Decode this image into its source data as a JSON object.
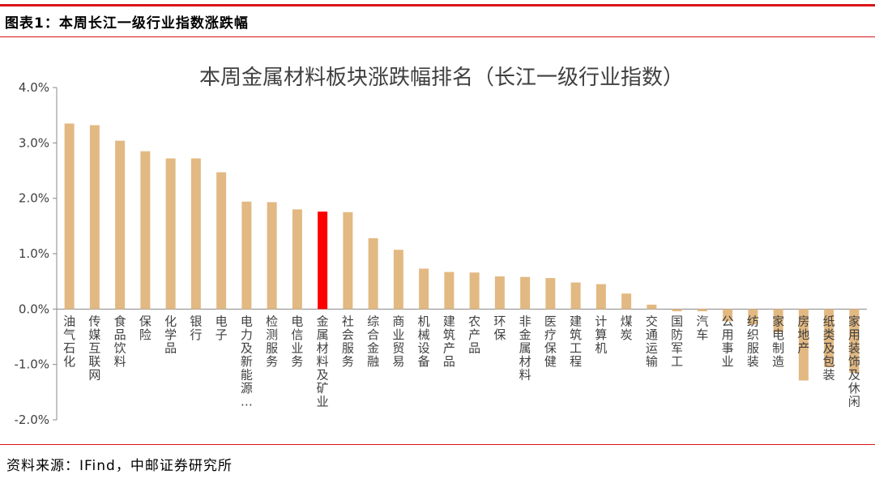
{
  "header": {
    "title": "图表1：本周长江一级行业指数涨跌幅"
  },
  "footer": {
    "source": "资料来源：IFind，中邮证券研究所"
  },
  "colors": {
    "bar": "#e2b982",
    "highlight": "#ff0000",
    "rule": "#d9141a"
  },
  "chart_data": {
    "type": "bar",
    "title": "本周金属材料板块涨跌幅排名（长江一级行业指数）",
    "ylim": [
      -0.02,
      0.04
    ],
    "yticks": [
      "4.0%",
      "3.0%",
      "2.0%",
      "1.0%",
      "0.0%",
      "-1.0%",
      "-2.0%"
    ],
    "highlight": "金属材料及矿业",
    "categories": [
      "油气石化",
      "传媒互联网",
      "食品饮料",
      "保险",
      "化学品",
      "银行",
      "电子",
      "电力及新能源…",
      "检测服务",
      "电信业务",
      "金属材料及矿业",
      "社会服务",
      "综合金融",
      "商业贸易",
      "机械设备",
      "建筑产品",
      "农产品",
      "环保",
      "非金属材料",
      "医疗保健",
      "建筑工程",
      "计算机",
      "煤炭",
      "交通运输",
      "国防军工",
      "汽车",
      "公用事业",
      "纺织服装",
      "家电制造",
      "房地产",
      "纸类及包装",
      "家用装饰及休闲"
    ],
    "values": [
      3.35,
      3.32,
      3.04,
      2.85,
      2.72,
      2.72,
      2.47,
      1.94,
      1.93,
      1.8,
      1.76,
      1.75,
      1.28,
      1.07,
      0.73,
      0.67,
      0.66,
      0.59,
      0.58,
      0.56,
      0.48,
      0.45,
      0.28,
      0.08,
      -0.04,
      -0.04,
      -0.22,
      -0.28,
      -0.42,
      -1.29,
      -1.05,
      -1.15
    ]
  }
}
